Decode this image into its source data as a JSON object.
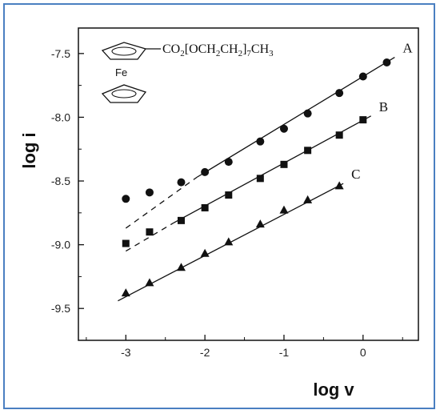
{
  "chart_data": {
    "type": "scatter",
    "xlabel": "log v",
    "ylabel": "log i",
    "xlim": [
      -3.6,
      0.7
    ],
    "ylim": [
      -9.75,
      -7.3
    ],
    "xticks": [
      -3,
      -2,
      -1,
      0
    ],
    "yticks": [
      -9.5,
      -9.0,
      -8.5,
      -8.0,
      -7.5
    ],
    "xtick_labels": [
      "-3",
      "-2",
      "-1",
      "0"
    ],
    "ytick_labels": [
      "-9.5",
      "-9.0",
      "-8.5",
      "-8.0",
      "-7.5"
    ],
    "grid": false,
    "series": [
      {
        "name": "A",
        "marker": "circle",
        "x": [
          -3.0,
          -2.7,
          -2.3,
          -2.0,
          -1.7,
          -1.3,
          -1.0,
          -0.7,
          -0.3,
          0.0,
          0.3
        ],
        "y": [
          -8.64,
          -8.59,
          -8.51,
          -8.43,
          -8.35,
          -8.19,
          -8.09,
          -7.97,
          -7.81,
          -7.68,
          -7.57
        ],
        "fit_solid": [
          [
            -2.1,
            -8.47
          ],
          [
            0.4,
            -7.53
          ]
        ],
        "fit_dashed": [
          [
            -3.0,
            -8.87
          ],
          [
            -2.1,
            -8.47
          ]
        ]
      },
      {
        "name": "B",
        "marker": "square",
        "x": [
          -3.0,
          -2.7,
          -2.3,
          -2.0,
          -1.7,
          -1.3,
          -1.0,
          -0.7,
          -0.3,
          0.0
        ],
        "y": [
          -8.99,
          -8.9,
          -8.81,
          -8.71,
          -8.61,
          -8.48,
          -8.37,
          -8.26,
          -8.14,
          -8.02
        ],
        "fit_solid": [
          [
            -2.4,
            -8.83
          ],
          [
            0.1,
            -7.99
          ]
        ],
        "fit_dashed": [
          [
            -3.0,
            -9.05
          ],
          [
            -2.4,
            -8.83
          ]
        ]
      },
      {
        "name": "C",
        "marker": "triangle",
        "x": [
          -3.0,
          -2.7,
          -2.3,
          -2.0,
          -1.7,
          -1.3,
          -1.0,
          -0.7,
          -0.3
        ],
        "y": [
          -9.38,
          -9.3,
          -9.18,
          -9.07,
          -8.98,
          -8.84,
          -8.73,
          -8.65,
          -8.54
        ],
        "fit_solid": [
          [
            -3.1,
            -9.44
          ],
          [
            -0.25,
            -8.52
          ]
        ]
      }
    ],
    "annotations": {
      "formula": {
        "prefix": "CO",
        "sub1": "2",
        "mid1": "[OCH",
        "sub2": "2",
        "mid2": "CH",
        "sub3": "2",
        "mid3": "]",
        "sub4": "7",
        "mid4": "CH",
        "sub5": "3"
      },
      "metal": "Fe"
    }
  }
}
